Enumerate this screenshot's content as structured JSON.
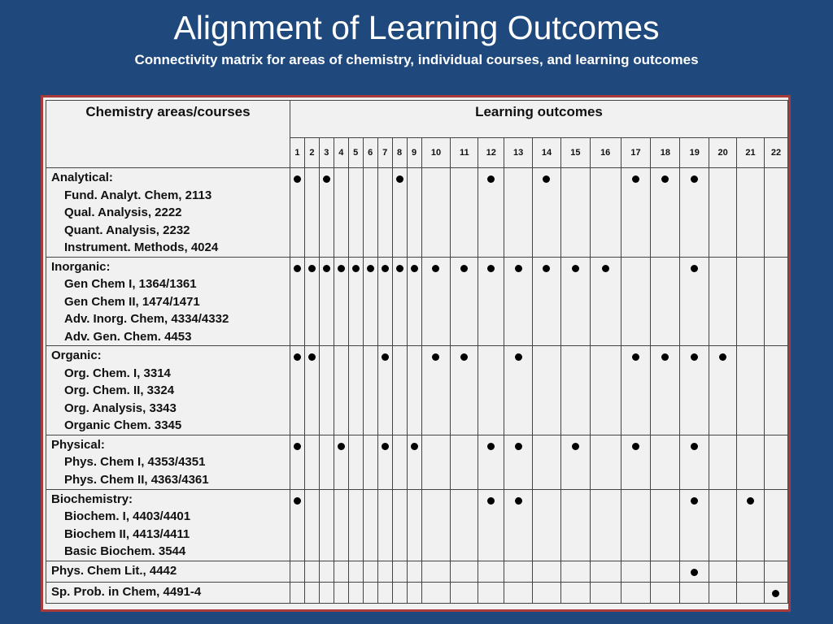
{
  "title": "Alignment of Learning Outcomes",
  "subtitle": "Connectivity matrix  for areas of chemistry, individual courses, and learning outcomes",
  "table": {
    "areas_header": "Chemistry areas/courses",
    "outcomes_header": "Learning outcomes",
    "outcome_numbers": [
      "1",
      "2",
      "3",
      "4",
      "5",
      "6",
      "7",
      "8",
      "9",
      "10",
      "11",
      "12",
      "13",
      "14",
      "15",
      "16",
      "17",
      "18",
      "19",
      "20",
      "21",
      "22"
    ],
    "rows": [
      {
        "area": "Analytical:",
        "courses": [
          "Fund. Analyt. Chem, 2113",
          "Qual. Analysis, 2222",
          "Quant. Analysis, 2232",
          "Instrument. Methods, 4024"
        ],
        "outcomes": [
          1,
          3,
          8,
          12,
          14,
          17,
          18,
          19
        ]
      },
      {
        "area": "Inorganic:",
        "courses": [
          "Gen Chem I, 1364/1361",
          "Gen Chem II, 1474/1471",
          "Adv. Inorg. Chem, 4334/4332",
          "Adv. Gen. Chem. 4453"
        ],
        "outcomes": [
          1,
          2,
          3,
          4,
          5,
          6,
          7,
          8,
          9,
          10,
          11,
          12,
          13,
          14,
          15,
          16,
          19
        ]
      },
      {
        "area": "Organic:",
        "courses": [
          "Org. Chem. I, 3314",
          "Org. Chem. II, 3324",
          "Org. Analysis, 3343",
          "Organic Chem. 3345"
        ],
        "outcomes": [
          1,
          2,
          7,
          10,
          11,
          13,
          17,
          18,
          19,
          20
        ]
      },
      {
        "area": "Physical:",
        "courses": [
          "Phys. Chem I, 4353/4351",
          "Phys. Chem II, 4363/4361"
        ],
        "outcomes": [
          1,
          4,
          7,
          9,
          12,
          13,
          15,
          17,
          19
        ]
      },
      {
        "area": "Biochemistry:",
        "courses": [
          "Biochem. I, 4403/4401",
          "Biochem II, 4413/4411",
          "Basic Biochem. 3544"
        ],
        "outcomes": [
          1,
          12,
          13,
          19,
          21
        ]
      },
      {
        "area": "Phys. Chem Lit., 4442",
        "courses": [],
        "outcomes": [
          19
        ]
      },
      {
        "area": "Sp. Prob. in Chem, 4491-4",
        "courses": [],
        "outcomes": [
          22
        ]
      }
    ]
  }
}
